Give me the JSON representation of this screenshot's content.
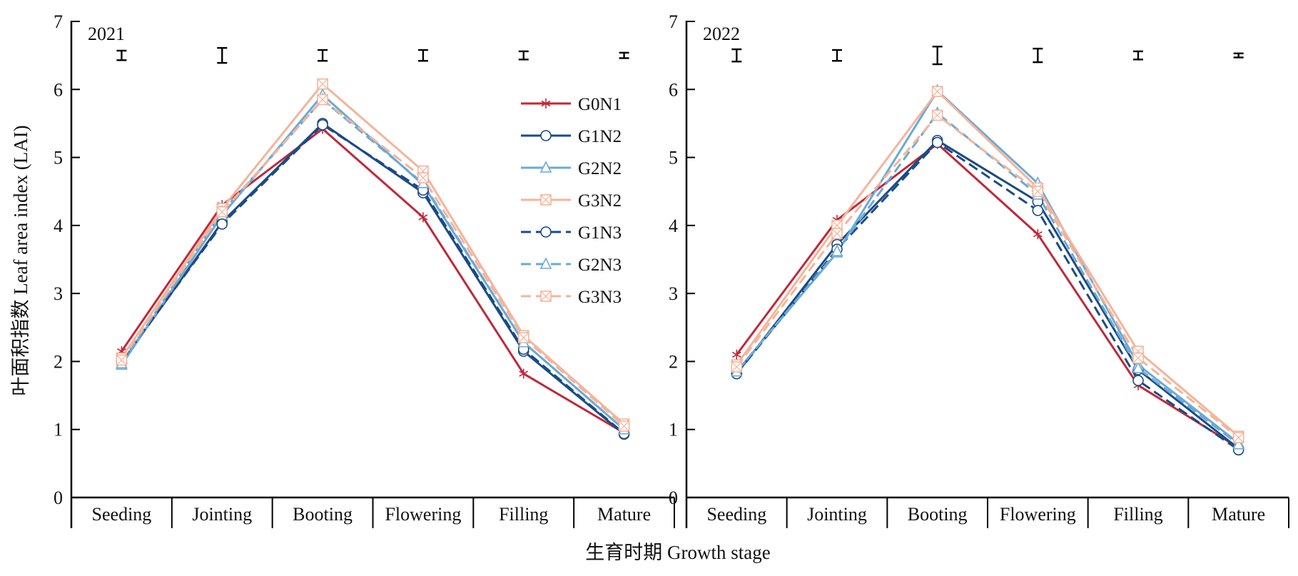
{
  "figure": {
    "ylabel": "叶面积指数 Leaf area index (LAI)",
    "xlabel": "生育时期 Growth stage"
  },
  "chart_data": [
    {
      "type": "line",
      "title": "2021",
      "categories": [
        "Seeding",
        "Jointing",
        "Booting",
        "Flowering",
        "Filling",
        "Mature"
      ],
      "ylim": [
        0,
        7
      ],
      "yticks": [
        0,
        1,
        2,
        3,
        4,
        5,
        6,
        7
      ],
      "legend": "top-right",
      "error_bar_half": [
        0.07,
        0.11,
        0.08,
        0.08,
        0.06,
        0.04
      ],
      "error_bar_y": 6.5,
      "series": [
        {
          "name": "G0N1",
          "color": "#c0283a",
          "dash": false,
          "marker": "star",
          "values": [
            2.15,
            4.3,
            5.42,
            4.12,
            1.82,
            0.95
          ]
        },
        {
          "name": "G1N2",
          "color": "#1b4b86",
          "dash": false,
          "marker": "circle",
          "values": [
            1.98,
            4.05,
            5.5,
            4.48,
            2.15,
            0.93
          ]
        },
        {
          "name": "G2N2",
          "color": "#6aaad6",
          "dash": false,
          "marker": "triangle",
          "values": [
            1.95,
            4.15,
            5.92,
            4.6,
            2.28,
            1.0
          ]
        },
        {
          "name": "G3N2",
          "color": "#f5b49a",
          "dash": false,
          "marker": "boxx",
          "values": [
            2.05,
            4.25,
            6.08,
            4.8,
            2.38,
            1.08
          ]
        },
        {
          "name": "G1N3",
          "color": "#1b4b86",
          "dash": true,
          "marker": "circle",
          "values": [
            2.0,
            4.02,
            5.48,
            4.52,
            2.18,
            0.94
          ]
        },
        {
          "name": "G2N3",
          "color": "#6aaad6",
          "dash": true,
          "marker": "triangle",
          "values": [
            1.97,
            4.2,
            5.85,
            4.62,
            2.28,
            1.0
          ]
        },
        {
          "name": "G3N3",
          "color": "#f5b49a",
          "dash": true,
          "marker": "boxx",
          "values": [
            2.02,
            4.2,
            5.85,
            4.7,
            2.35,
            1.05
          ]
        }
      ]
    },
    {
      "type": "line",
      "title": "2022",
      "categories": [
        "Seeding",
        "Jointing",
        "Booting",
        "Flowering",
        "Filling",
        "Mature"
      ],
      "ylim": [
        0,
        7
      ],
      "yticks": [
        0,
        1,
        2,
        3,
        4,
        5,
        6,
        7
      ],
      "legend": "",
      "error_bar_half": [
        0.09,
        0.08,
        0.13,
        0.1,
        0.06,
        0.03
      ],
      "error_bar_y": 6.5,
      "series": [
        {
          "name": "G0N1",
          "color": "#c0283a",
          "dash": false,
          "marker": "star",
          "values": [
            2.1,
            4.08,
            5.2,
            3.87,
            1.65,
            0.73
          ]
        },
        {
          "name": "G1N2",
          "color": "#1b4b86",
          "dash": false,
          "marker": "circle",
          "values": [
            1.82,
            3.72,
            5.25,
            4.35,
            1.88,
            0.72
          ]
        },
        {
          "name": "G2N2",
          "color": "#6aaad6",
          "dash": false,
          "marker": "triangle",
          "values": [
            1.85,
            3.6,
            5.98,
            4.62,
            1.95,
            0.8
          ]
        },
        {
          "name": "G3N2",
          "color": "#f5b49a",
          "dash": false,
          "marker": "boxx",
          "values": [
            1.95,
            4.0,
            5.97,
            4.55,
            2.15,
            0.9
          ]
        },
        {
          "name": "G1N3",
          "color": "#1b4b86",
          "dash": true,
          "marker": "circle",
          "values": [
            1.82,
            3.65,
            5.22,
            4.22,
            1.72,
            0.7
          ]
        },
        {
          "name": "G2N3",
          "color": "#6aaad6",
          "dash": true,
          "marker": "triangle",
          "values": [
            1.85,
            3.62,
            5.65,
            4.45,
            1.9,
            0.78
          ]
        },
        {
          "name": "G3N3",
          "color": "#f5b49a",
          "dash": true,
          "marker": "boxx",
          "values": [
            1.92,
            3.88,
            5.62,
            4.5,
            2.05,
            0.88
          ]
        }
      ]
    }
  ]
}
